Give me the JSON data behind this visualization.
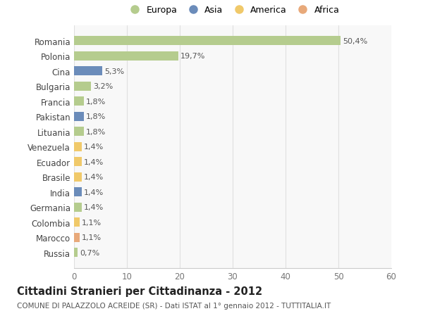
{
  "countries": [
    "Romania",
    "Polonia",
    "Cina",
    "Bulgaria",
    "Francia",
    "Pakistan",
    "Lituania",
    "Venezuela",
    "Ecuador",
    "Brasile",
    "India",
    "Germania",
    "Colombia",
    "Marocco",
    "Russia"
  ],
  "values": [
    50.4,
    19.7,
    5.3,
    3.2,
    1.8,
    1.8,
    1.8,
    1.4,
    1.4,
    1.4,
    1.4,
    1.4,
    1.1,
    1.1,
    0.7
  ],
  "labels": [
    "50,4%",
    "19,7%",
    "5,3%",
    "3,2%",
    "1,8%",
    "1,8%",
    "1,8%",
    "1,4%",
    "1,4%",
    "1,4%",
    "1,4%",
    "1,4%",
    "1,1%",
    "1,1%",
    "0,7%"
  ],
  "continents": [
    "Europa",
    "Europa",
    "Asia",
    "Europa",
    "Europa",
    "Asia",
    "Europa",
    "America",
    "America",
    "America",
    "Asia",
    "Europa",
    "America",
    "Africa",
    "Europa"
  ],
  "colors": {
    "Europa": "#b5cc8e",
    "Asia": "#6b8cba",
    "America": "#f0c96a",
    "Africa": "#e8a97a"
  },
  "legend_labels": [
    "Europa",
    "Asia",
    "America",
    "Africa"
  ],
  "legend_colors": [
    "#b5cc8e",
    "#6b8cba",
    "#f0c96a",
    "#e8a97a"
  ],
  "title": "Cittadini Stranieri per Cittadinanza - 2012",
  "subtitle": "COMUNE DI PALAZZOLO ACREIDE (SR) - Dati ISTAT al 1° gennaio 2012 - TUTTITALIA.IT",
  "xlim": [
    0,
    60
  ],
  "xticks": [
    0,
    10,
    20,
    30,
    40,
    50,
    60
  ],
  "bg_color": "#ffffff",
  "plot_bg_color": "#f8f8f8",
  "grid_color": "#e0e0e0",
  "bar_height": 0.6,
  "title_fontsize": 10.5,
  "subtitle_fontsize": 7.5,
  "tick_fontsize": 8.5,
  "label_fontsize": 8,
  "legend_fontsize": 9
}
